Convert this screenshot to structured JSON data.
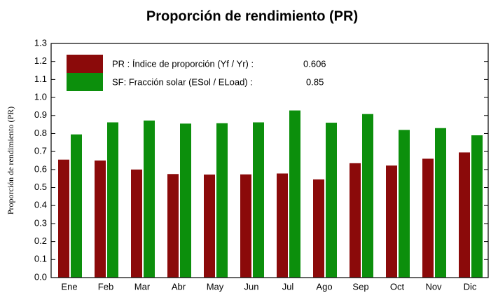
{
  "chart_data": {
    "type": "bar",
    "title": "Proporción de rendimiento (PR)",
    "y_label": "Proporción de rendimiento (PR)",
    "categories": [
      "Ene",
      "Feb",
      "Mar",
      "Abr",
      "May",
      "Jun",
      "Jul",
      "Ago",
      "Sep",
      "Oct",
      "Nov",
      "Dic"
    ],
    "series": [
      {
        "name": "PR : Índice de proporción (Yf / Yr) :",
        "annual": 0.606,
        "color": "#8b0a0a",
        "values": [
          0.655,
          0.65,
          0.6,
          0.575,
          0.572,
          0.573,
          0.578,
          0.545,
          0.635,
          0.622,
          0.66,
          0.695
        ]
      },
      {
        "name": "SF: Fracción solar (ESol / ELoad) :",
        "annual": 0.85,
        "color": "#0c8f0c",
        "values": [
          0.795,
          0.862,
          0.872,
          0.855,
          0.857,
          0.862,
          0.928,
          0.86,
          0.908,
          0.82,
          0.83,
          0.79
        ]
      }
    ],
    "ylim": [
      0,
      1.3
    ],
    "yticks": [
      {
        "value": 0,
        "label": "0.0"
      },
      0.1,
      0.2,
      0.3,
      0.4,
      0.5,
      0.6,
      0.7,
      0.8,
      0.9,
      {
        "value": 1,
        "label": "1.0"
      },
      1.1,
      1.2,
      1.3
    ]
  }
}
